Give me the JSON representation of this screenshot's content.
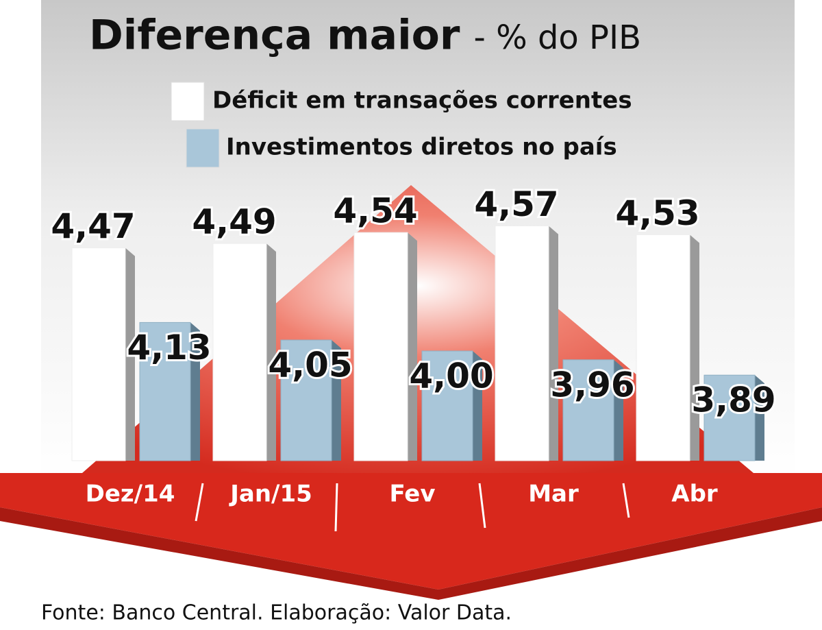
{
  "chart_data": {
    "type": "bar",
    "title": "Diferença maior",
    "subtitle": "- % do PIB",
    "categories": [
      "Dez/14",
      "Jan/15",
      "Fev",
      "Mar",
      "Abr"
    ],
    "series": [
      {
        "name": "Déficit em transações correntes",
        "color": "#ffffff",
        "values": [
          4.47,
          4.49,
          4.54,
          4.57,
          4.53
        ],
        "value_labels": [
          "4,47",
          "4,49",
          "4,54",
          "4,57",
          "4,53"
        ]
      },
      {
        "name": "Investimentos diretos no país",
        "color": "#a9c6d9",
        "values": [
          4.13,
          4.05,
          4.0,
          3.96,
          3.89
        ],
        "value_labels": [
          "4,13",
          "4,05",
          "4,00",
          "3,96",
          "3,89"
        ]
      }
    ],
    "ylim": [
      3.5,
      4.7
    ],
    "source": "Fonte: Banco Central. Elaboração: Valor Data."
  }
}
